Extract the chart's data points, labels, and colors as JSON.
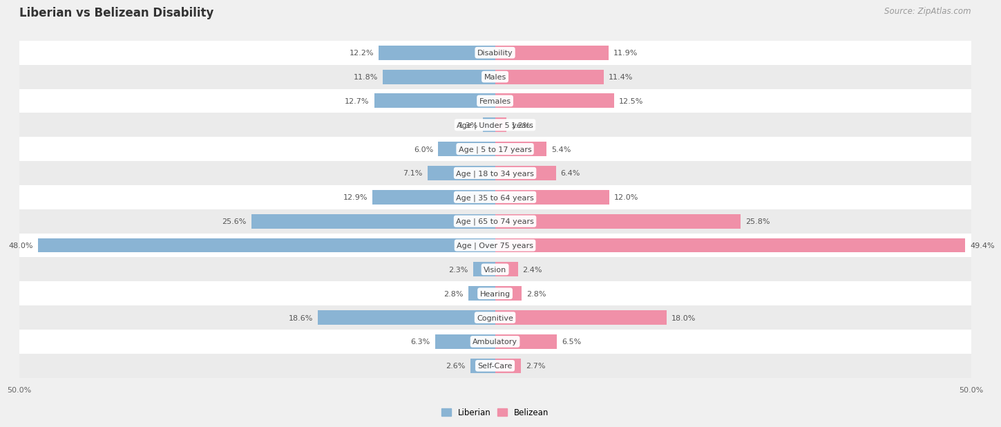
{
  "title": "Liberian vs Belizean Disability",
  "source": "Source: ZipAtlas.com",
  "categories": [
    "Disability",
    "Males",
    "Females",
    "Age | Under 5 years",
    "Age | 5 to 17 years",
    "Age | 18 to 34 years",
    "Age | 35 to 64 years",
    "Age | 65 to 74 years",
    "Age | Over 75 years",
    "Vision",
    "Hearing",
    "Cognitive",
    "Ambulatory",
    "Self-Care"
  ],
  "liberian": [
    12.2,
    11.8,
    12.7,
    1.3,
    6.0,
    7.1,
    12.9,
    25.6,
    48.0,
    2.3,
    2.8,
    18.6,
    6.3,
    2.6
  ],
  "belizean": [
    11.9,
    11.4,
    12.5,
    1.2,
    5.4,
    6.4,
    12.0,
    25.8,
    49.4,
    2.4,
    2.8,
    18.0,
    6.5,
    2.7
  ],
  "liberian_color": "#8ab4d4",
  "belizean_color": "#f090a8",
  "row_color_even": "#ebebeb",
  "row_color_odd": "#f5f5f5",
  "bar_bg_even": "#ffffff",
  "bar_bg_odd": "#f0f0f0",
  "axis_limit": 50.0,
  "background_color": "#f0f0f0",
  "title_fontsize": 12,
  "source_fontsize": 8.5,
  "label_fontsize": 8,
  "value_fontsize": 8
}
